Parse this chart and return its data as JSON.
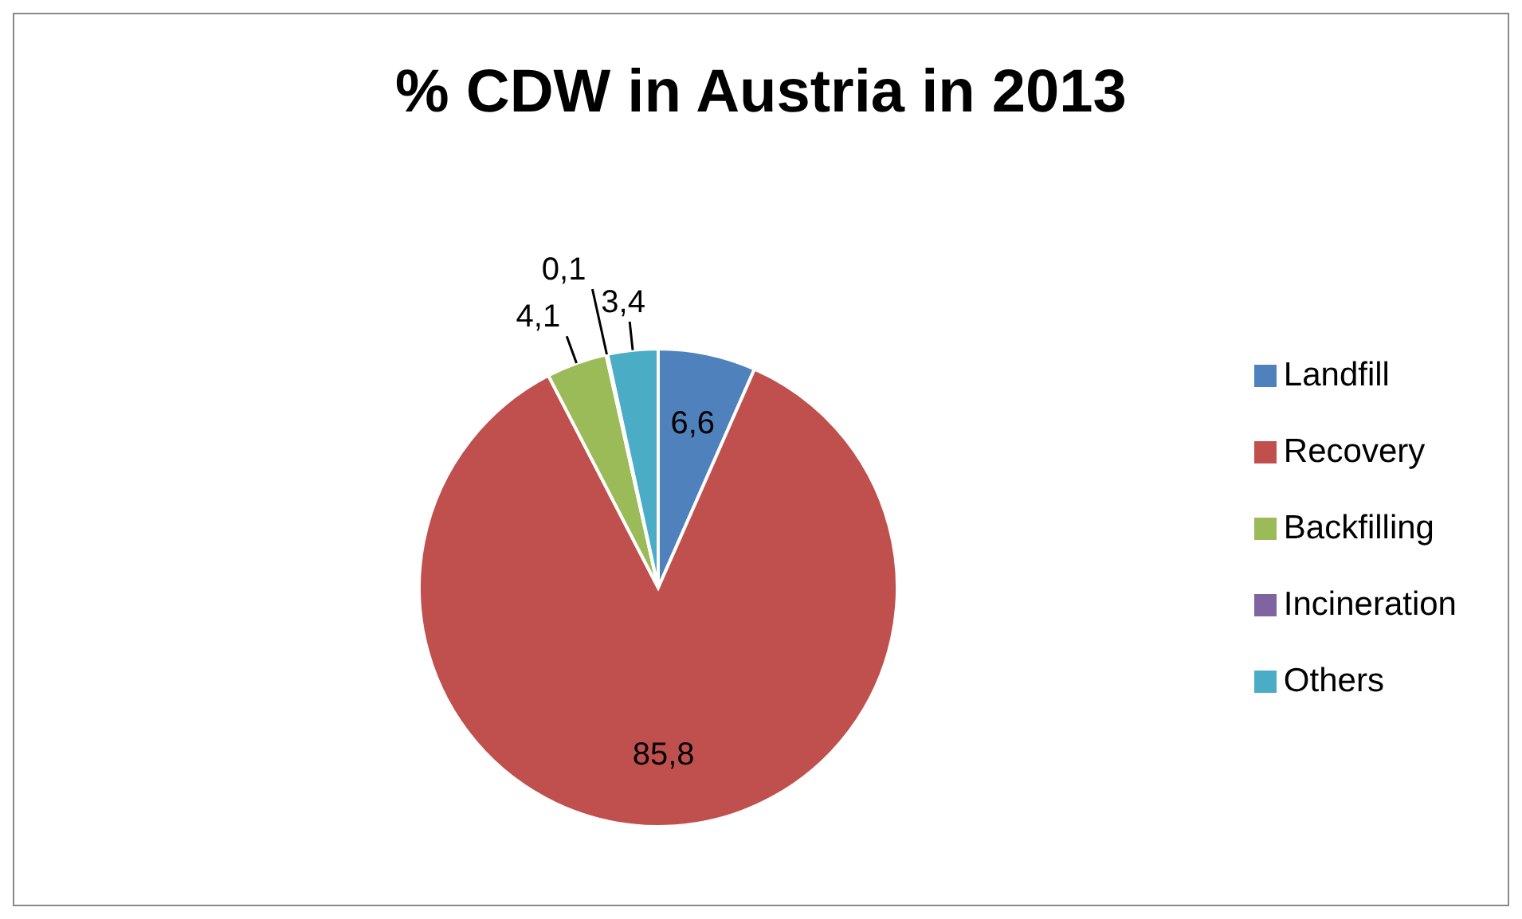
{
  "chart_data": {
    "type": "pie",
    "title": "% CDW in Austria in 2013",
    "categories": [
      "Landfill",
      "Recovery",
      "Backfilling",
      "Incineration",
      "Others"
    ],
    "values": [
      6.6,
      85.8,
      4.1,
      0.1,
      3.4
    ],
    "colors": [
      "#4f81bd",
      "#c0504d",
      "#9bbb59",
      "#8064a2",
      "#4bacc6"
    ],
    "value_labels": [
      "6,6",
      "85,8",
      "4,1",
      "0,1",
      "3,4"
    ],
    "legend": "right"
  }
}
